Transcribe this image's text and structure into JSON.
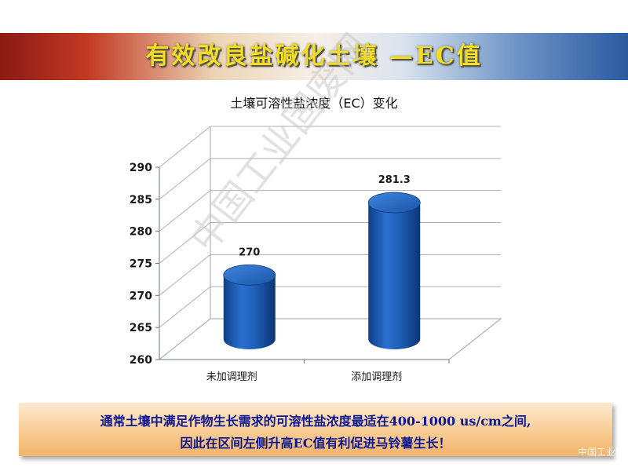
{
  "slide": {
    "title": "有效改良盐碱化土壤 —EC值",
    "watermark": "中国工业固废网",
    "note_line1": "通常土壤中满足作物生长需求的可溶性盐浓度最适在400-1000 us/cm之间,",
    "note_line2": "因此在区间左侧升高EC值有利促进马铃薯生长！",
    "corner_mark": "中国工业固"
  },
  "colors": {
    "bar": "#1f5fb8",
    "title_text": "#f4de1f",
    "note_text": "#0c1794"
  },
  "chart_data": {
    "type": "bar",
    "title": "土壤可溶性盐浓度（EC）变化",
    "categories": [
      "未加调理剂",
      "添加调理剂"
    ],
    "values": [
      270,
      281.3
    ],
    "value_labels": [
      "270",
      "281.3"
    ],
    "ylim": [
      260,
      290
    ],
    "yticks": [
      "290",
      "285",
      "280",
      "275",
      "270",
      "265",
      "260"
    ],
    "grid": true,
    "style": "3d-cylinder"
  }
}
